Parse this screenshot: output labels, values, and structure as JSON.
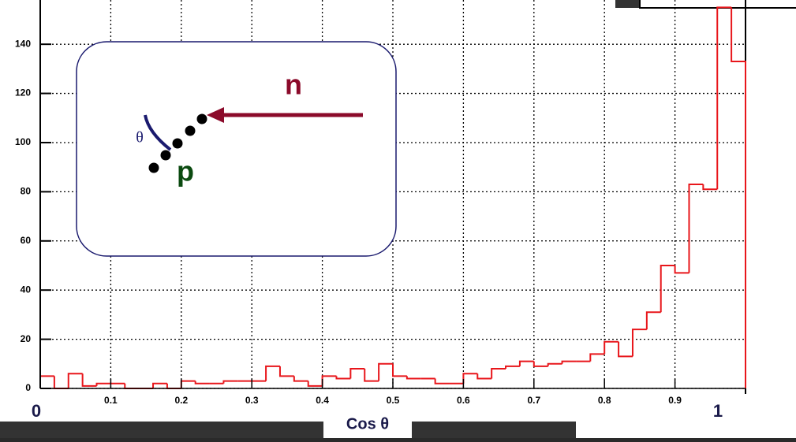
{
  "chart_data": {
    "type": "histogram",
    "bins": [
      0,
      0.02,
      0.04,
      0.06,
      0.08,
      0.1,
      0.12,
      0.14,
      0.16,
      0.18,
      0.2,
      0.22,
      0.24,
      0.26,
      0.28,
      0.3,
      0.32,
      0.34,
      0.36,
      0.38,
      0.4,
      0.42,
      0.44,
      0.46,
      0.48,
      0.5,
      0.52,
      0.54,
      0.56,
      0.58,
      0.6,
      0.62,
      0.64,
      0.66,
      0.68,
      0.7,
      0.72,
      0.74,
      0.76,
      0.78,
      0.8,
      0.82,
      0.84,
      0.86,
      0.88,
      0.9,
      0.92,
      0.94,
      0.96,
      0.98,
      1
    ],
    "values": [
      5,
      0,
      6,
      1,
      2,
      2,
      0,
      0,
      2,
      0,
      3,
      2,
      2,
      3,
      3,
      3,
      9,
      5,
      3,
      1,
      5,
      4,
      8,
      3,
      10,
      5,
      4,
      4,
      2,
      2,
      6,
      4,
      8,
      9,
      11,
      9,
      10,
      11,
      11,
      14,
      19,
      13,
      24,
      31,
      50,
      47,
      83,
      81,
      155,
      133
    ],
    "color": "#e8161b",
    "xlim": [
      0,
      1
    ],
    "ylim": [
      0,
      158
    ],
    "xticks": [
      0.1,
      0.2,
      0.3,
      0.4,
      0.5,
      0.6,
      0.7,
      0.8,
      0.9
    ],
    "yticks": [
      0,
      20,
      40,
      60,
      80,
      100,
      120,
      140
    ],
    "grid": true,
    "xlabel": "Cos θ",
    "x_end_labels": [
      "0",
      "1"
    ],
    "inset": {
      "neutron": "n",
      "proton": "p",
      "angle": "θ"
    }
  }
}
